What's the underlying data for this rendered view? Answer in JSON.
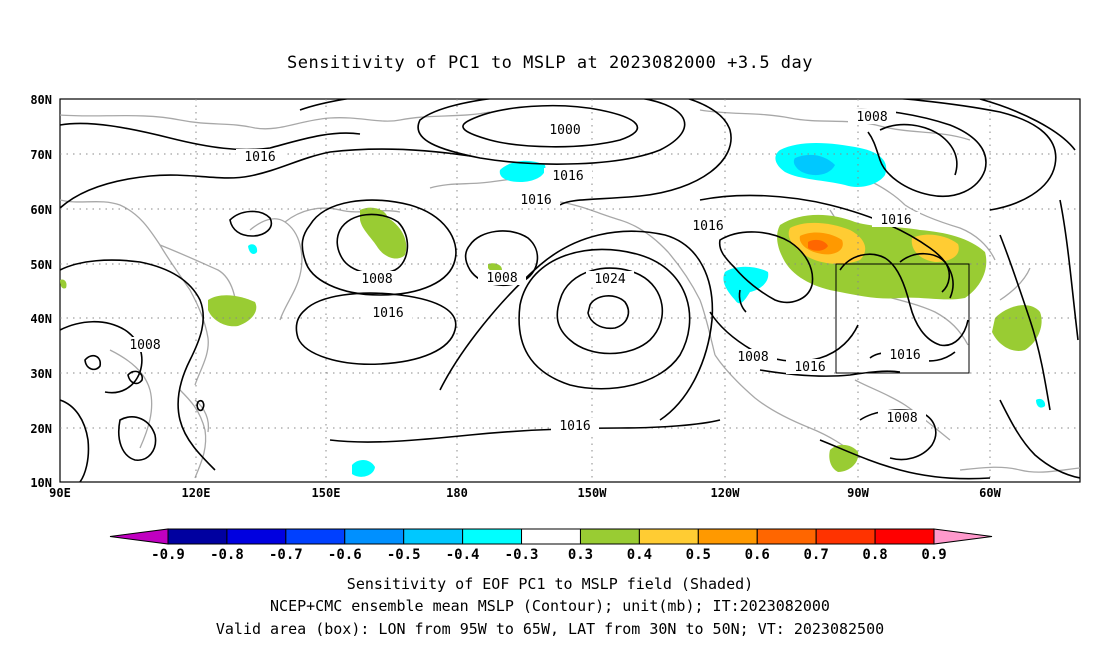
{
  "title": "Sensitivity of PC1 to MSLP at 2023082000 +3.5 day",
  "map": {
    "lat_labels": [
      "80N",
      "70N",
      "60N",
      "50N",
      "40N",
      "30N",
      "20N",
      "10N"
    ],
    "lon_labels": [
      "90E",
      "120E",
      "150E",
      "180",
      "150W",
      "120W",
      "90W",
      "60W"
    ],
    "contour_labels": [
      {
        "text": "1000"
      },
      {
        "text": "1008"
      },
      {
        "text": "1016"
      },
      {
        "text": "1016"
      },
      {
        "text": "1016"
      },
      {
        "text": "1016"
      },
      {
        "text": "1016"
      },
      {
        "text": "1008"
      },
      {
        "text": "1008"
      },
      {
        "text": "1016"
      },
      {
        "text": "1024"
      },
      {
        "text": "1008"
      },
      {
        "text": "1016"
      },
      {
        "text": "1008"
      },
      {
        "text": "1016"
      },
      {
        "text": "1016"
      },
      {
        "text": "1016"
      },
      {
        "text": "1008"
      }
    ],
    "valid_box": {
      "lon_min": -95,
      "lon_max": -65,
      "lat_min": 30,
      "lat_max": 50
    }
  },
  "colorbar": {
    "labels": [
      "-0.9",
      "-0.8",
      "-0.7",
      "-0.6",
      "-0.5",
      "-0.4",
      "-0.3",
      "0.3",
      "0.4",
      "0.5",
      "0.6",
      "0.7",
      "0.8",
      "0.9"
    ],
    "colors": [
      "#c000c0",
      "#0000a0",
      "#0000e0",
      "#0040ff",
      "#0090ff",
      "#00c8ff",
      "#00ffff",
      "#ffffff",
      "#99cc33",
      "#ffcc33",
      "#ff9900",
      "#ff6600",
      "#ff3300",
      "#ff0000",
      "#ff99cc"
    ]
  },
  "caption": [
    "Sensitivity of EOF PC1 to MSLP field (Shaded)",
    "NCEP+CMC ensemble mean MSLP (Contour); unit(mb); IT:2023082000",
    "Valid area (box): LON from 95W to 65W, LAT from 30N to 50N; VT: 2023082500"
  ]
}
